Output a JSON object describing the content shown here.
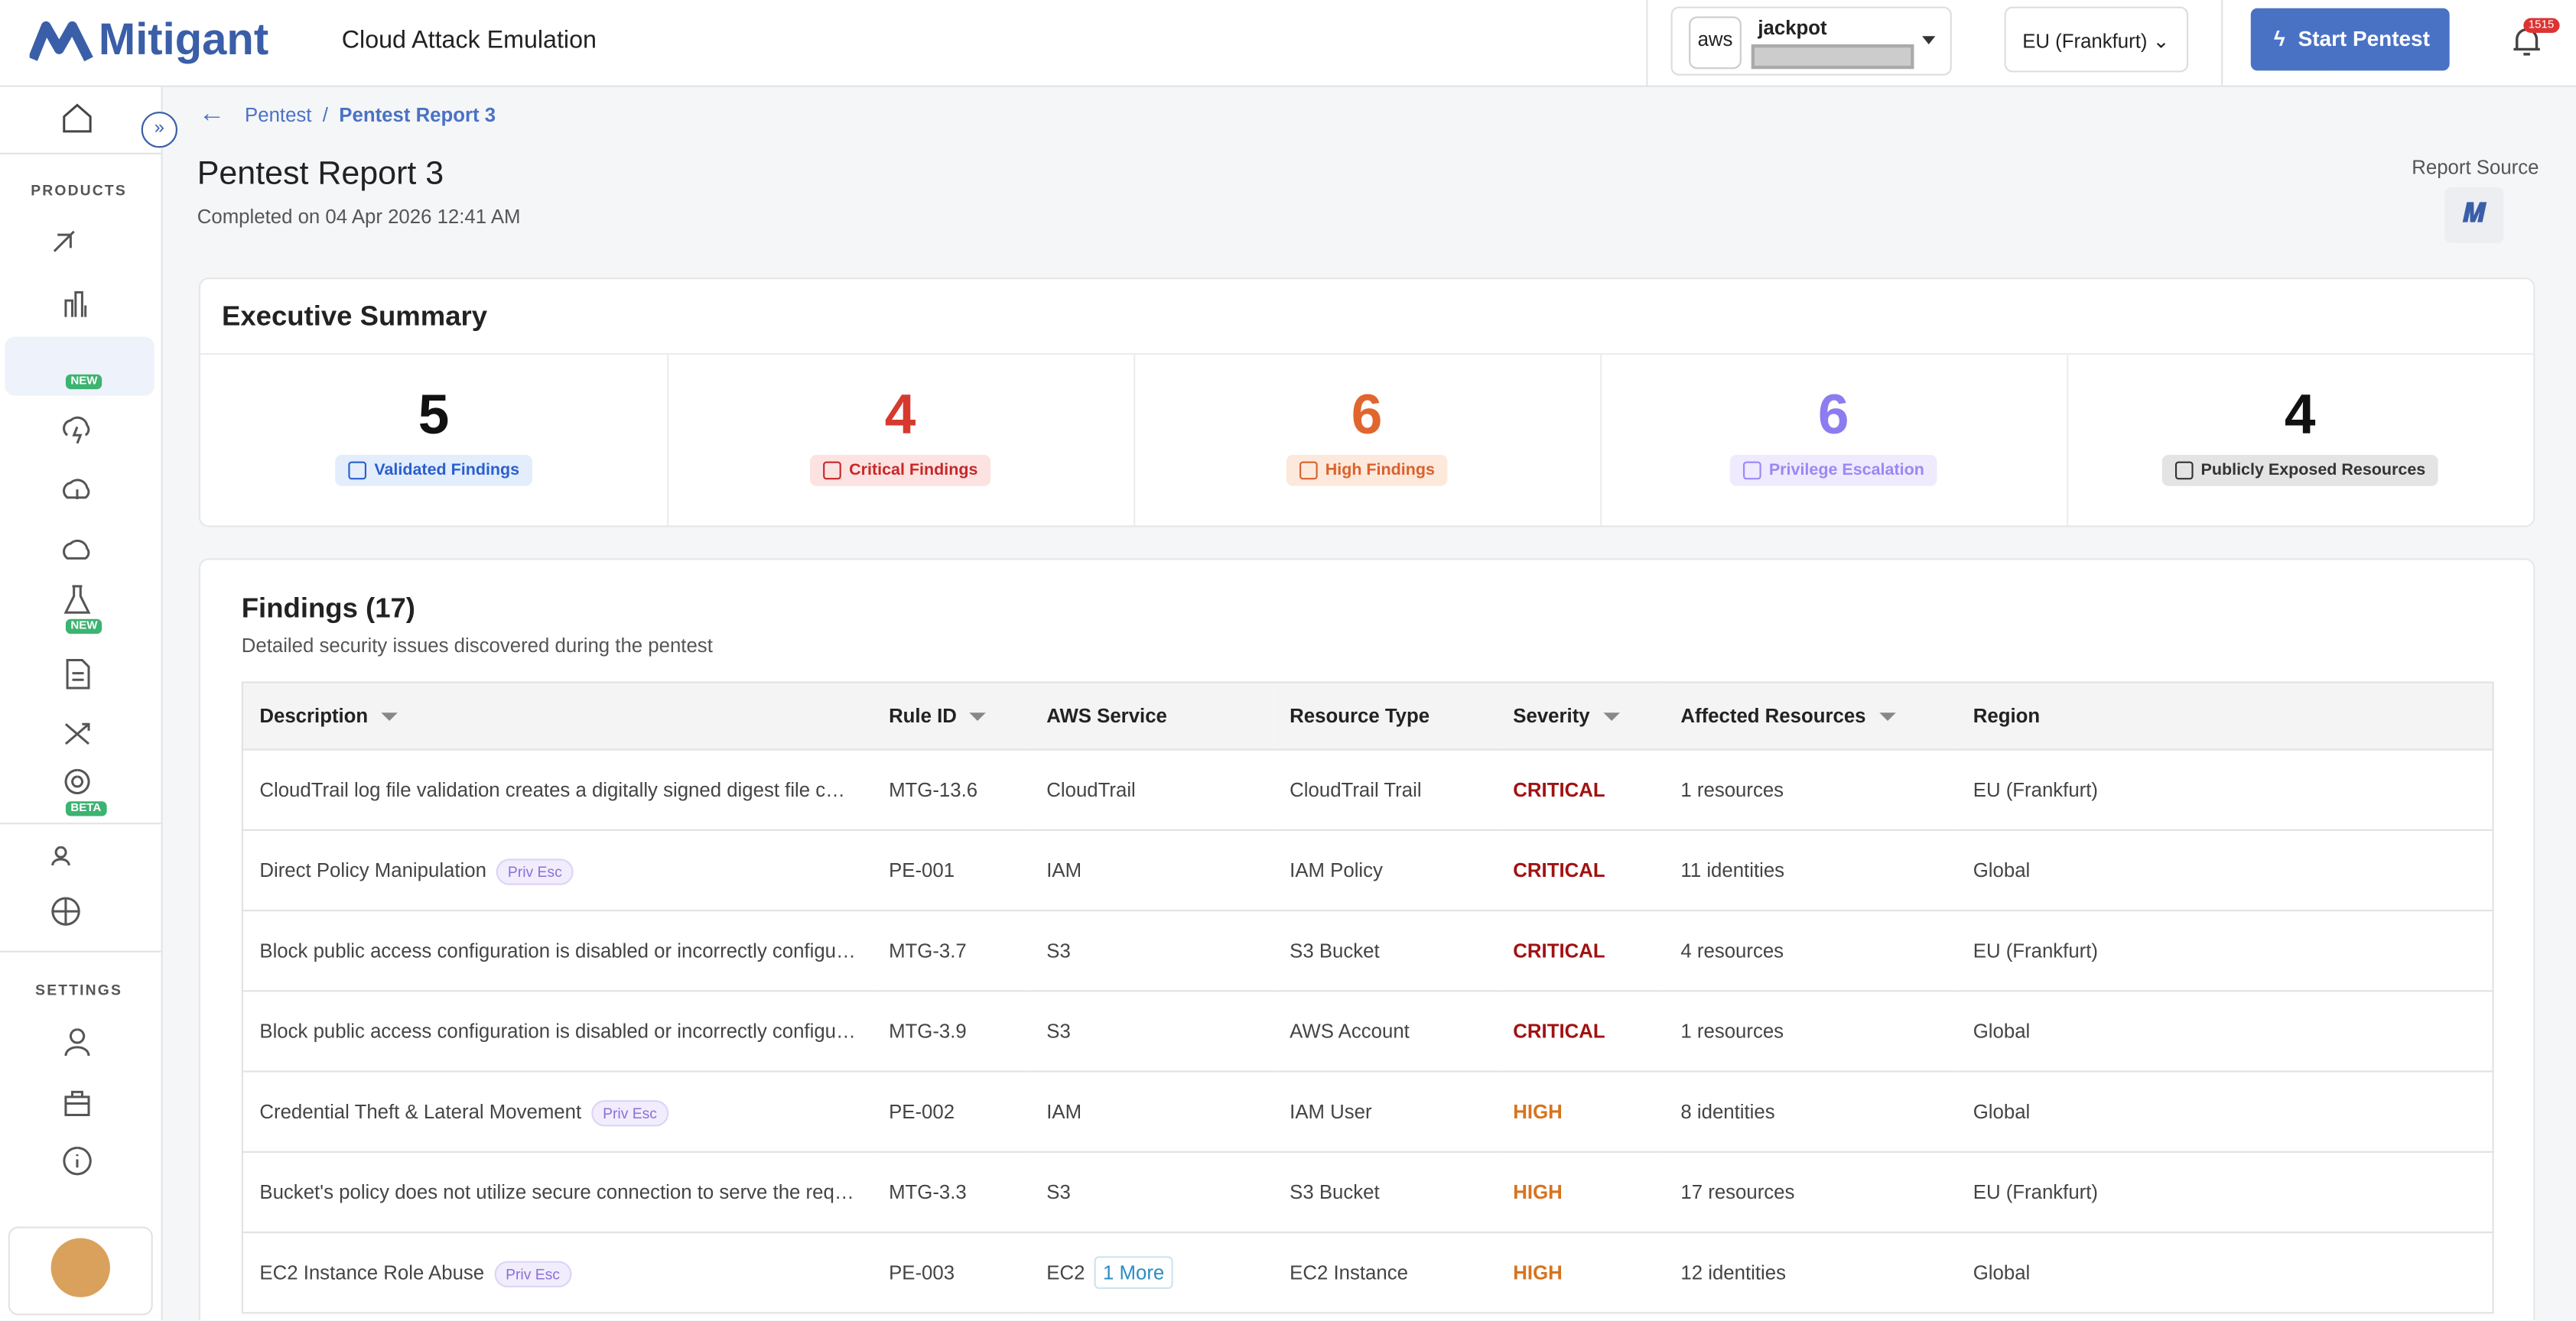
{
  "header": {
    "brand": "Mitigant",
    "product": "Cloud Attack Emulation",
    "account_provider": "aws",
    "account": "jackpot",
    "region": "EU (Frankfurt)",
    "start_button": "Start Pentest",
    "notifications": "1515"
  },
  "sidebar": {
    "products_label": "PRODUCTS",
    "settings_label": "SETTINGS",
    "badges": [
      "NEW",
      "NEW",
      "BETA"
    ]
  },
  "breadcrumb": [
    "Pentest",
    "Pentest Report 3"
  ],
  "report": {
    "title": "Pentest Report 3",
    "completed": "Completed on 04 Apr 2026 12:41 AM",
    "source_label": "Report Source"
  },
  "summary": {
    "title": "Executive Summary",
    "cards": [
      {
        "value": "5",
        "label": "Validated Findings"
      },
      {
        "value": "4",
        "label": "Critical Findings"
      },
      {
        "value": "6",
        "label": "High Findings"
      },
      {
        "value": "6",
        "label": "Privilege Escalation"
      },
      {
        "value": "4",
        "label": "Publicly Exposed Resources"
      }
    ]
  },
  "findings": {
    "title": "Findings (17)",
    "subtitle": "Detailed security issues discovered during the pentest",
    "columns": [
      "Description",
      "Rule ID",
      "AWS Service",
      "Resource Type",
      "Severity",
      "Affected Resources",
      "Region"
    ],
    "rows": [
      {
        "description": "CloudTrail log file validation creates a digitally signed digest file containing a hash of each log",
        "rule_id": "MTG-13.6",
        "service": "CloudTrail",
        "resource_type": "CloudTrail Trail",
        "severity": "CRITICAL",
        "affected": "1 resources",
        "region": "EU (Frankfurt)"
      },
      {
        "description": "Direct Policy Manipulation",
        "tag": "Priv Esc",
        "rule_id": "PE-001",
        "service": "IAM",
        "resource_type": "IAM Policy",
        "severity": "CRITICAL",
        "affected": "11 identities",
        "region": "Global"
      },
      {
        "description": "Block public access configuration is disabled or incorrectly configured",
        "rule_id": "MTG-3.7",
        "service": "S3",
        "resource_type": "S3 Bucket",
        "severity": "CRITICAL",
        "affected": "4 resources",
        "region": "EU (Frankfurt)"
      },
      {
        "description": "Block public access configuration is disabled or incorrectly configured",
        "rule_id": "MTG-3.9",
        "service": "S3",
        "resource_type": "AWS Account",
        "severity": "CRITICAL",
        "affected": "1 resources",
        "region": "Global"
      },
      {
        "description": "Credential Theft & Lateral Movement",
        "tag": "Priv Esc",
        "rule_id": "PE-002",
        "service": "IAM",
        "resource_type": "IAM User",
        "severity": "HIGH",
        "affected": "8 identities",
        "region": "Global"
      },
      {
        "description": "Bucket's policy does not utilize secure connection to serve the requests",
        "rule_id": "MTG-3.3",
        "service": "S3",
        "resource_type": "S3 Bucket",
        "severity": "HIGH",
        "affected": "17 resources",
        "region": "EU (Frankfurt)"
      },
      {
        "description": "EC2 Instance Role Abuse",
        "tag": "Priv Esc",
        "rule_id": "PE-003",
        "service": "EC2",
        "service_more": "1 More",
        "resource_type": "EC2 Instance",
        "severity": "HIGH",
        "affected": "12 identities",
        "region": "Global"
      }
    ]
  }
}
